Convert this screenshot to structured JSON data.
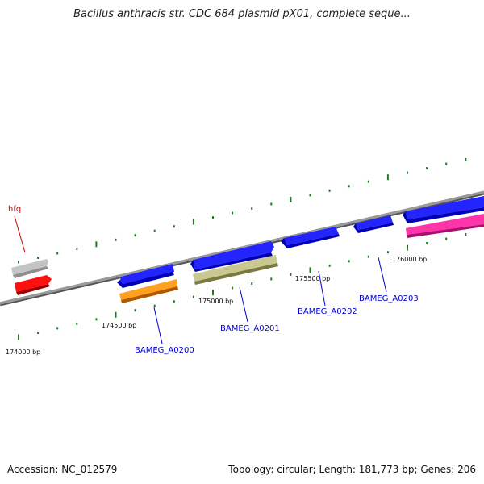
{
  "title": "Bacillus anthracis str. CDC 684 plasmid pX01, complete seque...",
  "footer": {
    "accession": "Accession: NC_012579",
    "summary": "Topology: circular; Length: 181,773 bp; Genes: 206"
  },
  "colors": {
    "backbone": "#8a8a8a",
    "tick": "#1e7a1e",
    "gene_label_blue": "#0000cc",
    "gene_label_red": "#cc0000",
    "blue_gene": "#1010e0",
    "red_gene": "#ee0000",
    "gray_gene": "#c4c4c4",
    "orange_gene": "#ff8800",
    "olive_gene": "#b8b878",
    "pink_gene": "#ee2299"
  },
  "position_labels": [
    "174000 bp",
    "174500 bp",
    "175000 bp",
    "175500 bp",
    "176000 bp"
  ],
  "gene_labels": [
    {
      "name": "hfq",
      "color": "red"
    },
    {
      "name": "BAMEG_A0200",
      "color": "blue"
    },
    {
      "name": "BAMEG_A0201",
      "color": "blue"
    },
    {
      "name": "BAMEG_A0202",
      "color": "blue"
    },
    {
      "name": "BAMEG_A0203",
      "color": "blue"
    }
  ]
}
